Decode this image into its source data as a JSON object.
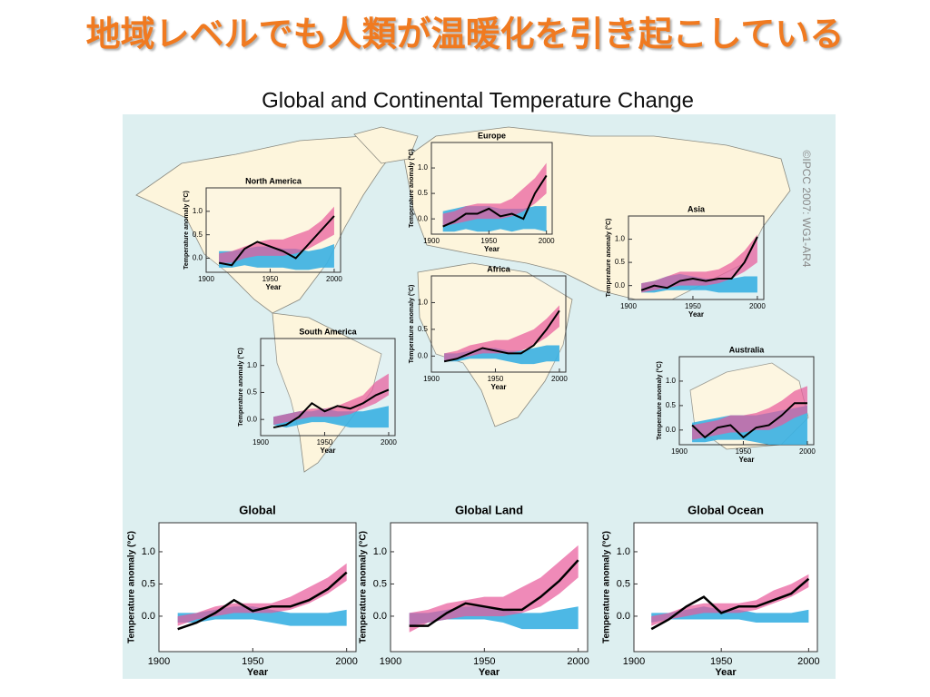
{
  "title": "地域レベルでも人類が温暖化を引き起こしている",
  "figure_title": "Global and Continental Temperature Change",
  "credit": "©IPCC 2007: WG1-AR4",
  "chart_data": [
    {
      "type": "line",
      "title": "North America",
      "xlabel": "Year",
      "ylabel": "Temperature anomaly (°C)",
      "x": [
        1910,
        1920,
        1930,
        1940,
        1950,
        1960,
        1970,
        1980,
        1990,
        2000
      ],
      "xlim": [
        1900,
        2005
      ],
      "xticks": [
        1900,
        1950,
        2000
      ],
      "ylim": [
        -0.3,
        1.5
      ],
      "yticks": [
        {
          "value": 0,
          "label": "0.0"
        },
        0.5,
        {
          "value": 1,
          "label": "1.0"
        }
      ],
      "series": [
        {
          "color": "#000000",
          "values": [
            -0.1,
            -0.15,
            0.2,
            0.35,
            0.25,
            0.15,
            0.0,
            0.3,
            0.6,
            0.9
          ]
        }
      ],
      "bands": [
        {
          "color": "#3ab0e2",
          "low": [
            -0.2,
            -0.2,
            -0.15,
            -0.2,
            -0.2,
            -0.2,
            -0.25,
            -0.25,
            -0.2,
            -0.2
          ],
          "high": [
            0.15,
            0.15,
            0.2,
            0.25,
            0.25,
            0.2,
            0.2,
            0.15,
            0.2,
            0.3
          ]
        },
        {
          "color": "#e8589a",
          "low": [
            -0.1,
            -0.1,
            0,
            0.05,
            0.05,
            0.05,
            0.1,
            0.2,
            0.35,
            0.5
          ],
          "high": [
            0.1,
            0.15,
            0.25,
            0.35,
            0.4,
            0.4,
            0.5,
            0.6,
            0.8,
            1.1
          ]
        }
      ]
    },
    {
      "type": "line",
      "title": "Europe",
      "xlabel": "Year",
      "ylabel": "Temperature anomaly (°C)",
      "x": [
        1910,
        1920,
        1930,
        1940,
        1950,
        1960,
        1970,
        1980,
        1990,
        2000
      ],
      "xlim": [
        1900,
        2005
      ],
      "xticks": [
        1900,
        1950,
        2000
      ],
      "ylim": [
        -0.3,
        1.5
      ],
      "yticks": [
        {
          "value": 0,
          "label": "0.0"
        },
        0.5,
        {
          "value": 1,
          "label": "1.0"
        }
      ],
      "series": [
        {
          "color": "#000000",
          "values": [
            -0.15,
            -0.05,
            0.1,
            0.1,
            0.2,
            0.05,
            0.1,
            0.0,
            0.5,
            0.85
          ]
        }
      ],
      "bands": [
        {
          "color": "#3ab0e2",
          "low": [
            -0.25,
            -0.25,
            -0.2,
            -0.25,
            -0.25,
            -0.2,
            -0.25,
            -0.2,
            -0.2,
            -0.25
          ],
          "high": [
            0.15,
            0.2,
            0.25,
            0.25,
            0.25,
            0.2,
            0.2,
            0.2,
            0.25,
            0.25
          ]
        },
        {
          "color": "#e8589a",
          "low": [
            -0.15,
            -0.1,
            -0.05,
            0,
            0,
            0,
            0.05,
            0.15,
            0.3,
            0.5
          ],
          "high": [
            0.1,
            0.15,
            0.25,
            0.3,
            0.3,
            0.3,
            0.4,
            0.6,
            0.8,
            1.1
          ]
        }
      ]
    },
    {
      "type": "line",
      "title": "Asia",
      "xlabel": "Year",
      "ylabel": "Temperature anomaly (°C)",
      "x": [
        1910,
        1920,
        1930,
        1940,
        1950,
        1960,
        1970,
        1980,
        1990,
        2000
      ],
      "xlim": [
        1900,
        2005
      ],
      "xticks": [
        1900,
        1950,
        2000
      ],
      "ylim": [
        -0.3,
        1.5
      ],
      "yticks": [
        {
          "value": 0,
          "label": "0.0"
        },
        0.5,
        {
          "value": 1,
          "label": "1.0"
        }
      ],
      "series": [
        {
          "color": "#000000",
          "values": [
            -0.1,
            0.0,
            -0.05,
            0.1,
            0.15,
            0.1,
            0.15,
            0.15,
            0.5,
            1.05
          ]
        }
      ],
      "bands": [
        {
          "color": "#3ab0e2",
          "low": [
            -0.15,
            -0.15,
            -0.1,
            -0.1,
            -0.1,
            -0.1,
            -0.15,
            -0.15,
            -0.15,
            -0.15
          ],
          "high": [
            0.05,
            0.1,
            0.2,
            0.25,
            0.2,
            0.15,
            0.15,
            0.15,
            0.2,
            0.2
          ]
        },
        {
          "color": "#e8589a",
          "low": [
            -0.15,
            -0.1,
            -0.05,
            0,
            0,
            0,
            0.05,
            0.15,
            0.3,
            0.5
          ],
          "high": [
            0.05,
            0.1,
            0.2,
            0.3,
            0.3,
            0.3,
            0.35,
            0.5,
            0.75,
            1.1
          ]
        }
      ]
    },
    {
      "type": "line",
      "title": "Africa",
      "xlabel": "Year",
      "ylabel": "Temperature anomaly (°C)",
      "x": [
        1910,
        1920,
        1930,
        1940,
        1950,
        1960,
        1970,
        1980,
        1990,
        2000
      ],
      "xlim": [
        1900,
        2005
      ],
      "xticks": [
        1900,
        1950,
        2000
      ],
      "ylim": [
        -0.3,
        1.5
      ],
      "yticks": [
        {
          "value": 0,
          "label": "0.0"
        },
        0.5,
        {
          "value": 1,
          "label": "1.0"
        }
      ],
      "series": [
        {
          "color": "#000000",
          "values": [
            -0.1,
            -0.05,
            0.05,
            0.15,
            0.1,
            0.05,
            0.05,
            0.2,
            0.5,
            0.85
          ]
        }
      ],
      "bands": [
        {
          "color": "#3ab0e2",
          "low": [
            -0.1,
            -0.1,
            -0.05,
            -0.05,
            -0.05,
            -0.1,
            -0.15,
            -0.15,
            -0.1,
            -0.1
          ],
          "high": [
            0.05,
            0.05,
            0.1,
            0.15,
            0.15,
            0.1,
            0.1,
            0.15,
            0.2,
            0.2
          ]
        },
        {
          "color": "#e8589a",
          "low": [
            -0.1,
            -0.05,
            0,
            0.05,
            0.05,
            0.05,
            0.1,
            0.2,
            0.35,
            0.55
          ],
          "high": [
            0.05,
            0.1,
            0.2,
            0.25,
            0.3,
            0.3,
            0.4,
            0.5,
            0.7,
            0.95
          ]
        }
      ]
    },
    {
      "type": "line",
      "title": "South America",
      "xlabel": "Year",
      "ylabel": "Temperature anomaly (°C)",
      "x": [
        1910,
        1920,
        1930,
        1940,
        1950,
        1960,
        1970,
        1980,
        1990,
        2000
      ],
      "xlim": [
        1900,
        2005
      ],
      "xticks": [
        1900,
        1950,
        2000
      ],
      "ylim": [
        -0.3,
        1.5
      ],
      "yticks": [
        {
          "value": 0,
          "label": "0.0"
        },
        0.5,
        {
          "value": 1,
          "label": "1.0"
        }
      ],
      "series": [
        {
          "color": "#000000",
          "values": [
            -0.15,
            -0.1,
            0.05,
            0.3,
            0.15,
            0.25,
            0.2,
            0.3,
            0.45,
            0.55
          ]
        }
      ],
      "bands": [
        {
          "color": "#3ab0e2",
          "low": [
            -0.1,
            -0.15,
            -0.1,
            -0.05,
            -0.05,
            -0.1,
            -0.15,
            -0.15,
            -0.15,
            -0.15
          ],
          "high": [
            0.05,
            0.1,
            0.15,
            0.15,
            0.2,
            0.15,
            0.15,
            0.15,
            0.2,
            0.25
          ]
        },
        {
          "color": "#e8589a",
          "low": [
            -0.1,
            -0.05,
            0,
            0.05,
            0.05,
            0.05,
            0.1,
            0.2,
            0.3,
            0.45
          ],
          "high": [
            0.05,
            0.1,
            0.15,
            0.2,
            0.2,
            0.25,
            0.35,
            0.45,
            0.7,
            0.85
          ]
        }
      ]
    },
    {
      "type": "line",
      "title": "Australia",
      "xlabel": "Year",
      "ylabel": "Temperature anomaly (°C)",
      "x": [
        1910,
        1920,
        1930,
        1940,
        1950,
        1960,
        1970,
        1980,
        1990,
        2000
      ],
      "xlim": [
        1900,
        2005
      ],
      "xticks": [
        1900,
        1950,
        2000
      ],
      "ylim": [
        -0.3,
        1.5
      ],
      "yticks": [
        {
          "value": 0,
          "label": "0.0"
        },
        0.5,
        {
          "value": 1,
          "label": "1.0"
        }
      ],
      "series": [
        {
          "color": "#000000",
          "values": [
            0.1,
            -0.15,
            0.05,
            0.1,
            -0.15,
            0.05,
            0.1,
            0.3,
            0.55,
            0.55
          ]
        }
      ],
      "bands": [
        {
          "color": "#3ab0e2",
          "low": [
            -0.25,
            -0.25,
            -0.2,
            -0.2,
            -0.2,
            -0.25,
            -0.3,
            -0.3,
            -0.3,
            -0.3
          ],
          "high": [
            0.15,
            0.2,
            0.25,
            0.3,
            0.3,
            0.3,
            0.35,
            0.4,
            0.45,
            0.5
          ]
        },
        {
          "color": "#e8589a",
          "low": [
            -0.2,
            -0.15,
            -0.1,
            -0.05,
            -0.05,
            0,
            0,
            0.1,
            0.25,
            0.35
          ],
          "high": [
            0.1,
            0.15,
            0.2,
            0.3,
            0.3,
            0.35,
            0.45,
            0.6,
            0.8,
            0.9
          ]
        }
      ]
    },
    {
      "type": "line",
      "title": "Global",
      "xlabel": "Year",
      "ylabel": "Temperature anomaly (°C)",
      "x": [
        1910,
        1920,
        1930,
        1940,
        1950,
        1960,
        1970,
        1980,
        1990,
        2000
      ],
      "xlim": [
        1900,
        2005
      ],
      "xticks": [
        1900,
        1950,
        2000
      ],
      "ylim": [
        -0.55,
        1.45
      ],
      "yticks": [
        {
          "value": 0,
          "label": "0.0"
        },
        0.5,
        {
          "value": 1,
          "label": "1.0"
        }
      ],
      "series": [
        {
          "color": "#000000",
          "values": [
            -0.2,
            -0.1,
            0.05,
            0.25,
            0.08,
            0.15,
            0.15,
            0.25,
            0.42,
            0.68
          ]
        }
      ],
      "bands": [
        {
          "color": "#3ab0e2",
          "low": [
            -0.1,
            -0.1,
            -0.05,
            -0.05,
            -0.05,
            -0.1,
            -0.15,
            -0.15,
            -0.15,
            -0.15
          ],
          "high": [
            0.05,
            0.05,
            0.1,
            0.15,
            0.15,
            0.1,
            0.05,
            0.05,
            0.05,
            0.1
          ]
        },
        {
          "color": "#e8589a",
          "low": [
            -0.15,
            -0.05,
            0,
            0.05,
            0.05,
            0.05,
            0.1,
            0.2,
            0.35,
            0.55
          ],
          "high": [
            0.0,
            0.05,
            0.15,
            0.2,
            0.2,
            0.2,
            0.3,
            0.45,
            0.6,
            0.82
          ]
        }
      ]
    },
    {
      "type": "line",
      "title": "Global Land",
      "xlabel": "Year",
      "ylabel": "Temperature anomaly (°C)",
      "x": [
        1910,
        1920,
        1930,
        1940,
        1950,
        1960,
        1970,
        1980,
        1990,
        2000
      ],
      "xlim": [
        1900,
        2005
      ],
      "xticks": [
        1900,
        1950,
        2000
      ],
      "ylim": [
        -0.55,
        1.45
      ],
      "yticks": [
        {
          "value": 0,
          "label": "0.0"
        },
        0.5,
        {
          "value": 1,
          "label": "1.0"
        }
      ],
      "series": [
        {
          "color": "#000000",
          "values": [
            -0.15,
            -0.15,
            0.05,
            0.2,
            0.15,
            0.1,
            0.1,
            0.3,
            0.55,
            0.87
          ]
        }
      ],
      "bands": [
        {
          "color": "#3ab0e2",
          "low": [
            -0.15,
            -0.1,
            -0.05,
            -0.05,
            -0.05,
            -0.1,
            -0.2,
            -0.2,
            -0.2,
            -0.2
          ],
          "high": [
            0.05,
            0.05,
            0.1,
            0.15,
            0.15,
            0.1,
            0.05,
            0.05,
            0.1,
            0.15
          ]
        },
        {
          "color": "#e8589a",
          "low": [
            -0.25,
            -0.1,
            -0.05,
            0,
            0,
            0,
            0.05,
            0.15,
            0.35,
            0.6
          ],
          "high": [
            0.05,
            0.1,
            0.2,
            0.25,
            0.3,
            0.3,
            0.45,
            0.6,
            0.85,
            1.1
          ]
        }
      ]
    },
    {
      "type": "line",
      "title": "Global Ocean",
      "xlabel": "Year",
      "ylabel": "Temperature anomaly (°C)",
      "x": [
        1910,
        1920,
        1930,
        1940,
        1950,
        1960,
        1970,
        1980,
        1990,
        2000
      ],
      "xlim": [
        1900,
        2005
      ],
      "xticks": [
        1900,
        1950,
        2000
      ],
      "ylim": [
        -0.55,
        1.45
      ],
      "yticks": [
        {
          "value": 0,
          "label": "0.0"
        },
        0.5,
        {
          "value": 1,
          "label": "1.0"
        }
      ],
      "series": [
        {
          "color": "#000000",
          "values": [
            -0.2,
            -0.05,
            0.15,
            0.3,
            0.05,
            0.15,
            0.15,
            0.25,
            0.35,
            0.58
          ]
        }
      ],
      "bands": [
        {
          "color": "#3ab0e2",
          "low": [
            -0.1,
            -0.05,
            -0.05,
            -0.05,
            -0.05,
            -0.05,
            -0.1,
            -0.1,
            -0.1,
            -0.1
          ],
          "high": [
            0.05,
            0.05,
            0.1,
            0.15,
            0.1,
            0.1,
            0.05,
            0.05,
            0.05,
            0.1
          ]
        },
        {
          "color": "#e8589a",
          "low": [
            -0.15,
            -0.05,
            0,
            0.05,
            0.05,
            0.05,
            0.1,
            0.2,
            0.3,
            0.45
          ],
          "high": [
            0,
            0.05,
            0.15,
            0.2,
            0.2,
            0.2,
            0.25,
            0.4,
            0.5,
            0.65
          ]
        }
      ]
    }
  ]
}
